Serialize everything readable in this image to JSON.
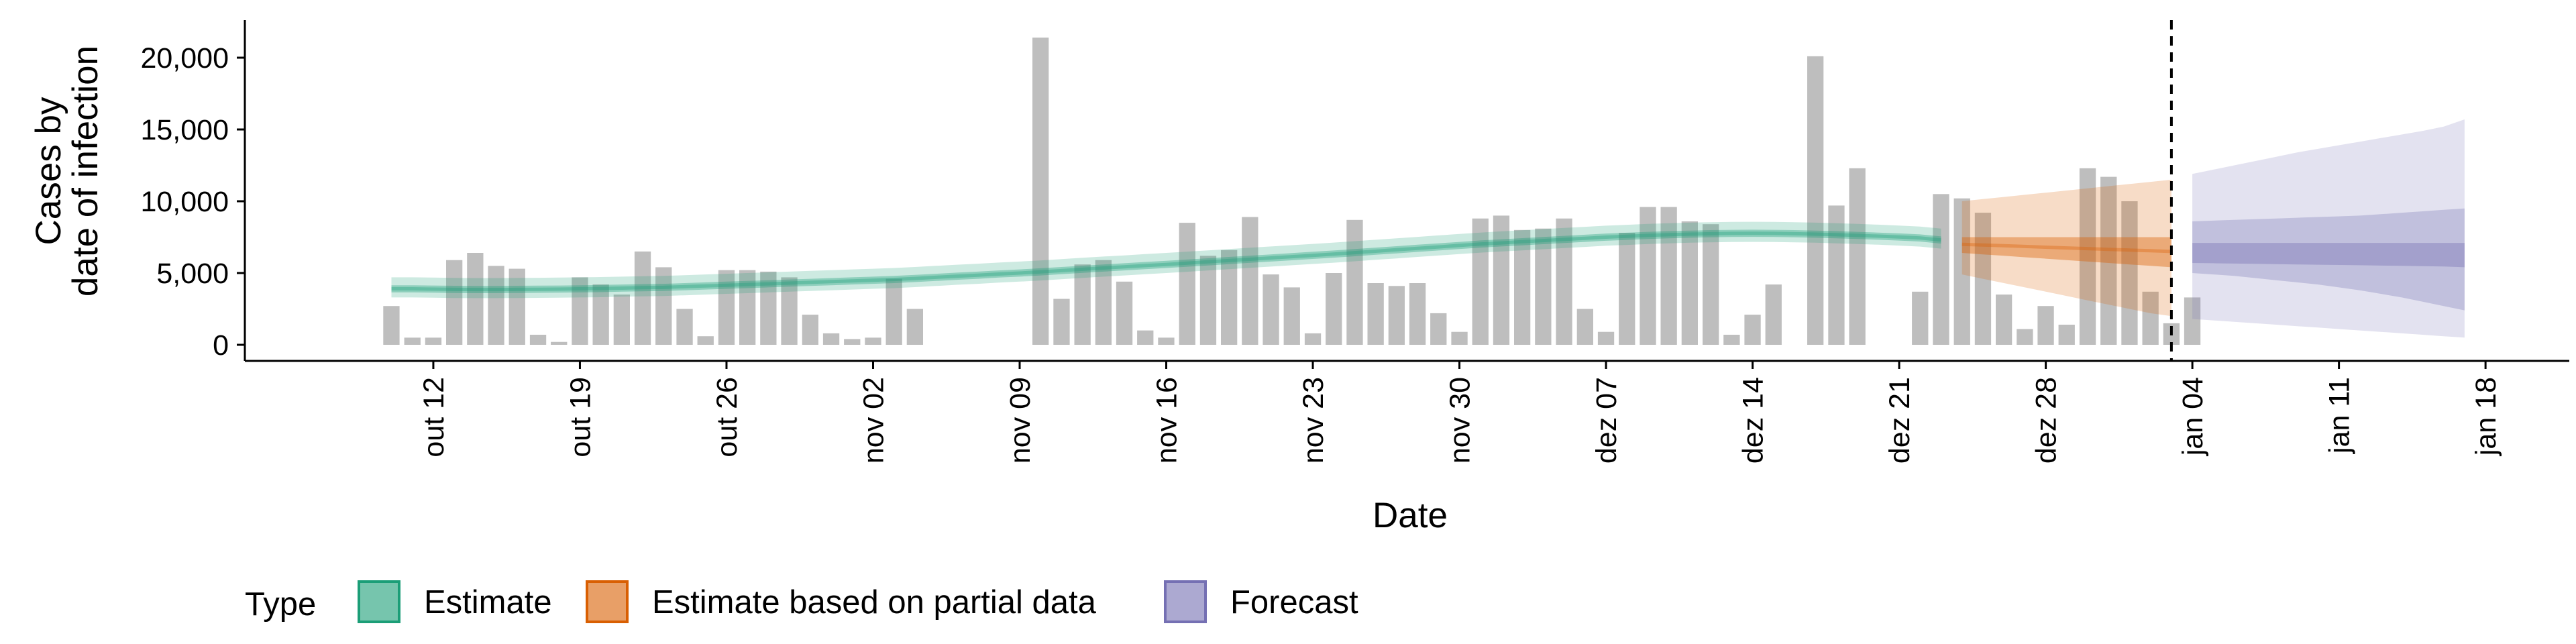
{
  "chart_data": {
    "type": "bar",
    "xlabel": "Date",
    "ylabel_line1": "Cases by",
    "ylabel_line2": "date of infection",
    "ylim": [
      0,
      22000
    ],
    "y_ticks": [
      0,
      5000,
      10000,
      15000,
      20000
    ],
    "y_tick_labels": [
      "0",
      "5,000",
      "10,000",
      "15,000",
      "20,000"
    ],
    "x_ticks": [
      {
        "date": "2020-10-12",
        "label": "out 12"
      },
      {
        "date": "2020-10-19",
        "label": "out 19"
      },
      {
        "date": "2020-10-26",
        "label": "out 26"
      },
      {
        "date": "2020-11-02",
        "label": "nov 02"
      },
      {
        "date": "2020-11-09",
        "label": "nov 09"
      },
      {
        "date": "2020-11-16",
        "label": "nov 16"
      },
      {
        "date": "2020-11-23",
        "label": "nov 23"
      },
      {
        "date": "2020-11-30",
        "label": "nov 30"
      },
      {
        "date": "2020-12-07",
        "label": "dez 07"
      },
      {
        "date": "2020-12-14",
        "label": "dez 14"
      },
      {
        "date": "2020-12-21",
        "label": "dez 21"
      },
      {
        "date": "2020-12-28",
        "label": "dez 28"
      },
      {
        "date": "2021-01-04",
        "label": "jan 04"
      },
      {
        "date": "2021-01-11",
        "label": "jan 11"
      },
      {
        "date": "2021-01-18",
        "label": "jan 18"
      }
    ],
    "xlim": [
      "2020-10-03",
      "2021-01-22"
    ],
    "vline_date": "2021-01-03",
    "reported_cases": {
      "start": "2020-10-10",
      "values": [
        2700,
        500,
        500,
        5900,
        6400,
        5500,
        5300,
        700,
        200,
        4700,
        4200,
        3500,
        6500,
        5400,
        2500,
        600,
        5200,
        5200,
        5100,
        4700,
        2100,
        800,
        400,
        500,
        4600,
        2500,
        0,
        0,
        0,
        0,
        0,
        21400,
        3200,
        5600,
        5900,
        4400,
        1000,
        500,
        8500,
        6200,
        6600,
        8900,
        4900,
        4000,
        800,
        5000,
        8700,
        4300,
        4100,
        4300,
        2200,
        900,
        8800,
        9000,
        8000,
        8100,
        8800,
        2500,
        900,
        7800,
        9600,
        9600,
        8600,
        8400,
        700,
        2100,
        4200,
        0,
        20100,
        9700,
        12300,
        0,
        0,
        3700,
        10500,
        10200,
        9200,
        3500,
        1100,
        2700,
        1400,
        12300,
        11700,
        10000,
        3700,
        1500,
        3300
      ]
    },
    "estimate": {
      "start": "2020-10-10",
      "median": [
        3900,
        3900,
        3880,
        3860,
        3850,
        3850,
        3860,
        3870,
        3880,
        3900,
        3920,
        3950,
        3980,
        4000,
        4050,
        4100,
        4150,
        4200,
        4250,
        4300,
        4350,
        4400,
        4450,
        4500,
        4550,
        4620,
        4700,
        4780,
        4850,
        4930,
        5000,
        5080,
        5170,
        5260,
        5350,
        5430,
        5520,
        5600,
        5690,
        5780,
        5870,
        5960,
        6050,
        6140,
        6230,
        6320,
        6420,
        6520,
        6620,
        6720,
        6820,
        6920,
        7020,
        7100,
        7180,
        7260,
        7340,
        7420,
        7500,
        7560,
        7620,
        7670,
        7710,
        7740,
        7760,
        7770,
        7760,
        7740,
        7710,
        7670,
        7620,
        7570,
        7510,
        7440,
        7300
      ],
      "lower50": [
        3650,
        3650,
        3630,
        3610,
        3600,
        3600,
        3610,
        3620,
        3630,
        3650,
        3670,
        3700,
        3730,
        3750,
        3800,
        3850,
        3900,
        3950,
        4000,
        4050,
        4100,
        4150,
        4200,
        4250,
        4300,
        4370,
        4450,
        4530,
        4600,
        4680,
        4750,
        4830,
        4920,
        5010,
        5100,
        5180,
        5270,
        5350,
        5440,
        5530,
        5620,
        5710,
        5800,
        5890,
        5980,
        6070,
        6170,
        6270,
        6370,
        6470,
        6570,
        6670,
        6770,
        6850,
        6930,
        7010,
        7090,
        7170,
        7250,
        7310,
        7370,
        7420,
        7460,
        7490,
        7510,
        7520,
        7510,
        7490,
        7460,
        7420,
        7370,
        7320,
        7260,
        7190,
        7050
      ],
      "upper50": [
        4150,
        4150,
        4130,
        4110,
        4100,
        4100,
        4110,
        4120,
        4130,
        4150,
        4170,
        4200,
        4230,
        4250,
        4300,
        4350,
        4400,
        4450,
        4500,
        4550,
        4600,
        4650,
        4700,
        4750,
        4800,
        4870,
        4950,
        5030,
        5100,
        5180,
        5250,
        5330,
        5420,
        5510,
        5600,
        5680,
        5770,
        5850,
        5940,
        6030,
        6120,
        6210,
        6300,
        6390,
        6480,
        6570,
        6670,
        6770,
        6870,
        6970,
        7070,
        7170,
        7270,
        7350,
        7430,
        7510,
        7590,
        7670,
        7750,
        7810,
        7870,
        7920,
        7960,
        7990,
        8010,
        8020,
        8010,
        7990,
        7960,
        7920,
        7870,
        7820,
        7760,
        7690,
        7550
      ],
      "lower90": [
        3300,
        3300,
        3280,
        3260,
        3250,
        3250,
        3260,
        3270,
        3280,
        3300,
        3320,
        3350,
        3380,
        3400,
        3450,
        3500,
        3550,
        3600,
        3650,
        3700,
        3750,
        3800,
        3850,
        3900,
        3950,
        4020,
        4100,
        4180,
        4250,
        4330,
        4400,
        4480,
        4570,
        4660,
        4750,
        4830,
        4920,
        5000,
        5090,
        5180,
        5270,
        5360,
        5450,
        5540,
        5630,
        5720,
        5820,
        5920,
        6020,
        6120,
        6220,
        6320,
        6420,
        6500,
        6580,
        6660,
        6740,
        6820,
        6900,
        6960,
        7020,
        7070,
        7110,
        7140,
        7160,
        7170,
        7160,
        7140,
        7110,
        7070,
        7020,
        6970,
        6910,
        6840,
        6700
      ],
      "upper90": [
        4700,
        4700,
        4680,
        4660,
        4650,
        4650,
        4660,
        4670,
        4680,
        4700,
        4720,
        4750,
        4780,
        4800,
        4850,
        4900,
        4950,
        5000,
        5050,
        5100,
        5150,
        5200,
        5250,
        5300,
        5350,
        5420,
        5500,
        5580,
        5650,
        5730,
        5800,
        5880,
        5970,
        6060,
        6150,
        6230,
        6320,
        6400,
        6490,
        6580,
        6670,
        6760,
        6850,
        6940,
        7030,
        7120,
        7220,
        7320,
        7420,
        7520,
        7620,
        7720,
        7820,
        7900,
        7980,
        8060,
        8140,
        8220,
        8300,
        8360,
        8420,
        8470,
        8510,
        8540,
        8560,
        8570,
        8560,
        8540,
        8510,
        8470,
        8420,
        8370,
        8310,
        8240,
        8100
      ]
    },
    "estimate_partial": {
      "start": "2020-12-24",
      "median": [
        7000,
        6950,
        6900,
        6850,
        6800,
        6750,
        6700,
        6650,
        6600,
        6550,
        6500
      ],
      "lower50": [
        6400,
        6300,
        6200,
        6100,
        6000,
        5900,
        5800,
        5700,
        5600,
        5500,
        5400
      ],
      "upper50": [
        7500,
        7500,
        7500,
        7500,
        7500,
        7500,
        7500,
        7500,
        7500,
        7500,
        7500
      ],
      "lower90": [
        4900,
        4600,
        4300,
        4000,
        3700,
        3400,
        3100,
        2800,
        2500,
        2200,
        2000
      ],
      "upper90": [
        10000,
        10150,
        10300,
        10450,
        10600,
        10750,
        10900,
        11050,
        11200,
        11350,
        11500
      ]
    },
    "forecast": {
      "start": "2021-01-04",
      "median": [
        6400,
        6400,
        6400,
        6400,
        6400,
        6400,
        6400,
        6400,
        6400,
        6400,
        6400,
        6400,
        6400,
        6400
      ],
      "lower50": [
        5700,
        5680,
        5660,
        5640,
        5620,
        5600,
        5580,
        5560,
        5540,
        5520,
        5500,
        5480,
        5460,
        5400
      ],
      "upper50": [
        7100,
        7100,
        7100,
        7100,
        7100,
        7100,
        7100,
        7100,
        7100,
        7100,
        7100,
        7100,
        7100,
        7100
      ],
      "lower75": [
        5000,
        4900,
        4800,
        4650,
        4500,
        4350,
        4200,
        4000,
        3800,
        3550,
        3300,
        3000,
        2700,
        2400
      ],
      "upper75": [
        8600,
        8650,
        8700,
        8750,
        8800,
        8850,
        8900,
        8950,
        9000,
        9100,
        9200,
        9300,
        9400,
        9500
      ],
      "lower90": [
        1800,
        1700,
        1600,
        1500,
        1400,
        1300,
        1200,
        1100,
        1000,
        900,
        800,
        700,
        600,
        500
      ],
      "upper90": [
        11900,
        12200,
        12500,
        12800,
        13100,
        13400,
        13650,
        13900,
        14150,
        14400,
        14650,
        14900,
        15200,
        15700
      ]
    },
    "legend": {
      "title": "Type",
      "placement": "bottom-left",
      "items": [
        {
          "label": "Estimate",
          "color": "#1b9e77"
        },
        {
          "label": "Estimate based on partial data",
          "color": "#d95f02"
        },
        {
          "label": "Forecast",
          "color": "#7570b3"
        }
      ]
    },
    "colors": {
      "bars": "#bebebe",
      "estimate": "#1b9e77",
      "partial": "#d95f02",
      "forecast": "#7570b3"
    }
  }
}
